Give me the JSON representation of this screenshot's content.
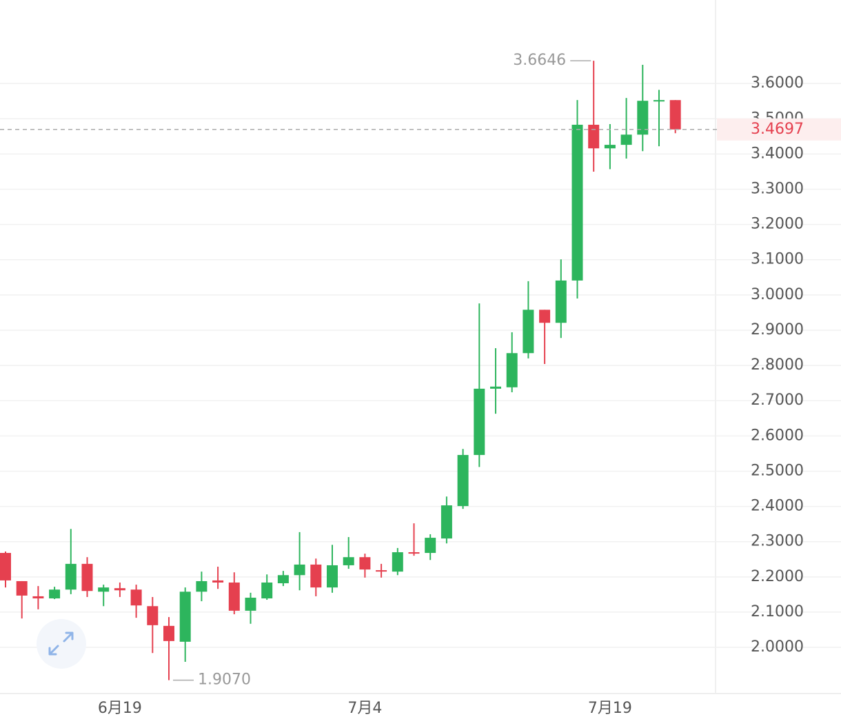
{
  "chart_data": {
    "type": "candlestick",
    "categories": [
      null,
      null,
      null,
      null,
      null,
      null,
      null,
      "6月19",
      null,
      null,
      null,
      null,
      null,
      null,
      null,
      null,
      null,
      null,
      null,
      null,
      null,
      null,
      "7月4",
      null,
      null,
      null,
      null,
      null,
      null,
      null,
      null,
      null,
      null,
      null,
      null,
      null,
      null,
      "7月19",
      null,
      null,
      null,
      null
    ],
    "open": [
      2.268,
      2.188,
      2.145,
      2.139,
      2.164,
      2.237,
      2.158,
      2.168,
      2.164,
      2.117,
      2.061,
      2.016,
      2.158,
      2.19,
      2.184,
      2.104,
      2.139,
      2.182,
      2.205,
      2.235,
      2.17,
      2.233,
      2.256,
      2.219,
      2.215,
      2.27,
      2.268,
      2.309,
      2.401,
      2.546,
      2.734,
      2.738,
      2.835,
      2.958,
      2.921,
      3.041,
      3.483,
      3.416,
      3.426,
      3.455,
      3.549,
      3.553
    ],
    "high": [
      2.272,
      2.188,
      2.174,
      2.172,
      2.336,
      2.256,
      2.178,
      2.184,
      2.178,
      2.143,
      2.086,
      2.17,
      2.215,
      2.229,
      2.213,
      2.155,
      2.207,
      2.217,
      2.327,
      2.252,
      2.291,
      2.313,
      2.266,
      2.237,
      2.282,
      2.352,
      2.321,
      2.428,
      2.563,
      2.976,
      2.849,
      2.894,
      3.039,
      2.958,
      3.101,
      3.553,
      3.6646,
      3.485,
      3.559,
      3.653,
      3.582,
      3.553
    ],
    "low": [
      2.17,
      2.082,
      2.108,
      2.137,
      2.151,
      2.143,
      2.117,
      2.143,
      2.084,
      1.984,
      1.907,
      1.959,
      2.131,
      2.166,
      2.094,
      2.067,
      2.135,
      2.174,
      2.162,
      2.145,
      2.155,
      2.223,
      2.198,
      2.198,
      2.205,
      2.26,
      2.248,
      2.295,
      2.393,
      2.512,
      2.663,
      2.724,
      2.82,
      2.804,
      2.878,
      2.99,
      3.35,
      3.357,
      3.387,
      3.408,
      3.422,
      3.459
    ],
    "close": [
      2.19,
      2.147,
      2.139,
      2.164,
      2.237,
      2.16,
      2.17,
      2.162,
      2.119,
      2.063,
      2.018,
      2.158,
      2.188,
      2.184,
      2.104,
      2.141,
      2.184,
      2.205,
      2.235,
      2.17,
      2.233,
      2.256,
      2.221,
      2.215,
      2.27,
      2.266,
      2.311,
      2.403,
      2.546,
      2.734,
      2.74,
      2.835,
      2.958,
      2.921,
      3.041,
      3.483,
      3.416,
      3.426,
      3.455,
      3.551,
      3.553,
      3.4697
    ],
    "up_color": "#2db55d",
    "down_color": "#e5404f",
    "ylim": [
      1.871,
      3.837
    ],
    "yticks": [
      {
        "value": 2.0,
        "label": "2.0000"
      },
      {
        "value": 2.1,
        "label": "2.1000"
      },
      {
        "value": 2.2,
        "label": "2.2000"
      },
      {
        "value": 2.3,
        "label": "2.3000"
      },
      {
        "value": 2.4,
        "label": "2.4000"
      },
      {
        "value": 2.5,
        "label": "2.5000"
      },
      {
        "value": 2.6,
        "label": "2.6000"
      },
      {
        "value": 2.7,
        "label": "2.7000"
      },
      {
        "value": 2.8,
        "label": "2.8000"
      },
      {
        "value": 2.9,
        "label": "2.9000"
      },
      {
        "value": 3.0,
        "label": "3.0000"
      },
      {
        "value": 3.1,
        "label": "3.1000"
      },
      {
        "value": 3.2,
        "label": "3.2000"
      },
      {
        "value": 3.3,
        "label": "3.3000"
      },
      {
        "value": 3.4,
        "label": "3.4000"
      },
      {
        "value": 3.5,
        "label": "3.5000"
      },
      {
        "value": 3.6,
        "label": "3.6000"
      }
    ],
    "grid": true,
    "high_label": "3.6646",
    "low_label": "1.9070",
    "last_price": {
      "value": 3.4697,
      "label": "3.4697"
    }
  }
}
